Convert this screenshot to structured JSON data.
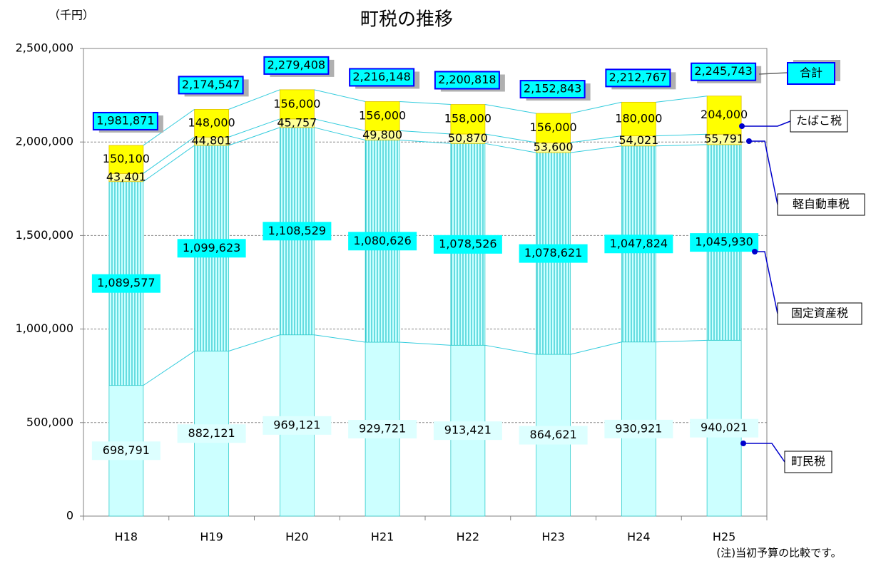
{
  "chart_data": {
    "type": "stacked-bar",
    "title": "町税の推移",
    "unit_label": "（千円）",
    "note": "(注)当初予算の比較です。",
    "categories": [
      "H18",
      "H19",
      "H20",
      "H21",
      "H22",
      "H23",
      "H24",
      "H25"
    ],
    "series": [
      {
        "name": "町民税",
        "color": "#ccffff",
        "values": [
          698791,
          882121,
          969121,
          929721,
          913421,
          864621,
          930921,
          940021
        ],
        "value_labels": [
          "698,791",
          "882,121",
          "969,121",
          "929,721",
          "913,421",
          "864,621",
          "930,921",
          "940,021"
        ]
      },
      {
        "name": "固定資産税",
        "color": "#66e0e8",
        "values": [
          1089577,
          1099623,
          1108529,
          1080626,
          1078526,
          1078621,
          1047824,
          1045930
        ],
        "value_labels": [
          "1,089,577",
          "1,099,623",
          "1,108,529",
          "1,080,626",
          "1,078,526",
          "1,078,621",
          "1,047,824",
          "1,045,930"
        ]
      },
      {
        "name": "軽自動車税",
        "color": "#ffff99",
        "values": [
          43401,
          44801,
          45757,
          49800,
          50870,
          53600,
          54021,
          55791
        ],
        "value_labels": [
          "43,401",
          "44,801",
          "45,757",
          "49,800",
          "50,870",
          "53,600",
          "54,021",
          "55,791"
        ]
      },
      {
        "name": "たばこ税",
        "color": "#ffff00",
        "values": [
          150100,
          148000,
          156000,
          156000,
          158000,
          156000,
          180000,
          204000
        ],
        "value_labels": [
          "150,100",
          "148,000",
          "156,000",
          "156,000",
          "158,000",
          "156,000",
          "180,000",
          "204,000"
        ]
      }
    ],
    "total_name": "合計",
    "totals": [
      1981871,
      2174547,
      2279408,
      2216148,
      2200818,
      2152843,
      2212767,
      2245743
    ],
    "total_labels": [
      "1,981,871",
      "2,174,547",
      "2,279,408",
      "2,216,148",
      "2,200,818",
      "2,152,843",
      "2,212,767",
      "2,245,743"
    ],
    "ylim": [
      0,
      2500000
    ],
    "yticks": [
      0,
      {
        "value": 500000,
        "label": "500,000"
      },
      {
        "value": 1000000,
        "label": "1,000,000"
      },
      {
        "value": 1500000,
        "label": "1,500,000"
      },
      {
        "value": 2000000,
        "label": "2,000,000"
      },
      {
        "value": 2500000,
        "label": "2,500,000"
      }
    ],
    "grid": true
  }
}
